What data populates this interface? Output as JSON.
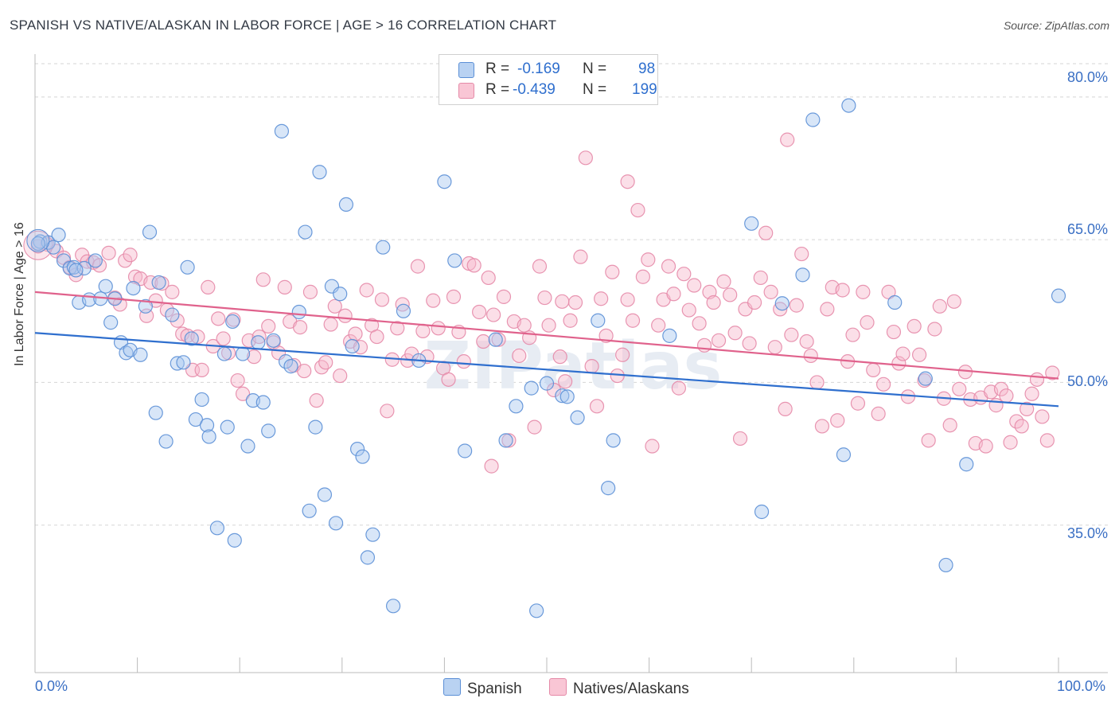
{
  "title": "SPANISH VS NATIVE/ALASKAN IN LABOR FORCE | AGE > 16 CORRELATION CHART",
  "source": "Source: ZipAtlas.com",
  "watermark": "ZIPatlas",
  "legend_stats": {
    "spanish": {
      "r_label": "R =",
      "r_value": "-0.169",
      "n_label": "N =",
      "n_value": "98"
    },
    "natives": {
      "r_label": "R =",
      "r_value": "-0.439",
      "n_label": "N =",
      "n_value": "199"
    }
  },
  "colors": {
    "spanish_fill": "#a9c8ef",
    "spanish_stroke": "#5b8fd6",
    "spanish_line": "#2f6fce",
    "natives_fill": "#f6b9cc",
    "natives_stroke": "#e58aa8",
    "natives_line": "#e0628c",
    "tick_text": "#3a6fc4",
    "grid": "#d5d5d5"
  },
  "chart_data": {
    "type": "scatter",
    "title": "SPANISH VS NATIVE/ALASKAN IN LABOR FORCE | AGE > 16 CORRELATION CHART",
    "xlabel": "",
    "ylabel": "In Labor Force | Age > 16",
    "xlim": [
      0,
      100
    ],
    "ylim": [
      19.5,
      83.5
    ],
    "x_tick_labels": [
      "0.0%",
      "100.0%"
    ],
    "y_ticks": [
      35,
      50,
      65,
      80
    ],
    "y_tick_labels": [
      "35.0%",
      "50.0%",
      "65.0%",
      "80.0%"
    ],
    "grid": "horizontal dashed",
    "legend": "bottom-center",
    "series": [
      {
        "name": "Spanish",
        "trend": {
          "x": [
            0,
            100
          ],
          "y": [
            55.2,
            47.5
          ]
        },
        "points": [
          [
            0.5,
            64.8
          ],
          [
            1.3,
            64.7
          ],
          [
            2.3,
            65.5
          ],
          [
            2.8,
            62.8
          ],
          [
            3.4,
            62.0
          ],
          [
            3.8,
            62.1
          ],
          [
            4.3,
            58.4
          ],
          [
            4.8,
            62.0
          ],
          [
            5.3,
            58.7
          ],
          [
            5.9,
            62.8
          ],
          [
            6.4,
            58.8
          ],
          [
            6.9,
            60.1
          ],
          [
            7.4,
            56.3
          ],
          [
            7.8,
            58.8
          ],
          [
            8.4,
            54.2
          ],
          [
            8.9,
            53.1
          ],
          [
            9.3,
            53.4
          ],
          [
            9.6,
            59.9
          ],
          [
            10.3,
            52.9
          ],
          [
            10.8,
            58.0
          ],
          [
            11.2,
            65.8
          ],
          [
            11.8,
            46.8
          ],
          [
            12.1,
            60.5
          ],
          [
            12.8,
            43.8
          ],
          [
            13.4,
            57.1
          ],
          [
            13.9,
            52.0
          ],
          [
            14.5,
            52.1
          ],
          [
            14.9,
            62.1
          ],
          [
            15.3,
            54.6
          ],
          [
            15.7,
            46.1
          ],
          [
            16.3,
            48.2
          ],
          [
            16.8,
            45.5
          ],
          [
            17.0,
            44.3
          ],
          [
            17.8,
            34.7
          ],
          [
            18.5,
            53.0
          ],
          [
            18.8,
            45.3
          ],
          [
            19.3,
            56.4
          ],
          [
            19.5,
            33.4
          ],
          [
            20.3,
            53.0
          ],
          [
            20.8,
            43.3
          ],
          [
            21.3,
            48.1
          ],
          [
            21.8,
            54.2
          ],
          [
            22.3,
            47.9
          ],
          [
            22.8,
            44.9
          ],
          [
            23.3,
            54.4
          ],
          [
            24.1,
            76.4
          ],
          [
            24.5,
            52.2
          ],
          [
            25.0,
            51.7
          ],
          [
            25.8,
            57.4
          ],
          [
            26.4,
            65.8
          ],
          [
            26.8,
            36.5
          ],
          [
            27.4,
            45.3
          ],
          [
            27.8,
            72.1
          ],
          [
            28.3,
            38.2
          ],
          [
            29.0,
            60.1
          ],
          [
            29.4,
            35.2
          ],
          [
            29.8,
            59.3
          ],
          [
            30.4,
            68.7
          ],
          [
            31.0,
            53.8
          ],
          [
            31.5,
            43.0
          ],
          [
            32.0,
            42.2
          ],
          [
            32.5,
            31.6
          ],
          [
            33.0,
            34.0
          ],
          [
            34.0,
            64.2
          ],
          [
            35.0,
            26.5
          ],
          [
            36.0,
            57.5
          ],
          [
            37.5,
            52.3
          ],
          [
            40.0,
            71.1
          ],
          [
            41.0,
            62.8
          ],
          [
            42.0,
            42.8
          ],
          [
            45.0,
            54.5
          ],
          [
            46.0,
            43.9
          ],
          [
            47.0,
            47.5
          ],
          [
            48.5,
            49.4
          ],
          [
            49.0,
            26.0
          ],
          [
            50.0,
            49.9
          ],
          [
            51.5,
            48.6
          ],
          [
            52.0,
            48.5
          ],
          [
            53.0,
            46.3
          ],
          [
            55.0,
            56.5
          ],
          [
            56.0,
            38.9
          ],
          [
            56.5,
            43.9
          ],
          [
            62.0,
            54.9
          ],
          [
            70.0,
            66.7
          ],
          [
            71.0,
            36.4
          ],
          [
            73.0,
            58.3
          ],
          [
            75.0,
            61.3
          ],
          [
            76.0,
            77.6
          ],
          [
            79.0,
            42.4
          ],
          [
            79.5,
            79.1
          ],
          [
            84.0,
            58.4
          ],
          [
            87.0,
            50.4
          ],
          [
            89.0,
            30.8
          ],
          [
            91.0,
            41.4
          ],
          [
            100.0,
            59.1
          ],
          [
            0.3,
            64.6
          ],
          [
            1.8,
            64.2
          ],
          [
            4.0,
            61.8
          ]
        ]
      },
      {
        "name": "Natives/Alaskans",
        "trend": {
          "x": [
            0,
            100
          ],
          "y": [
            59.5,
            50.4
          ]
        },
        "points": [
          [
            0.3,
            64.3
          ],
          [
            1.2,
            64.5
          ],
          [
            2.1,
            63.8
          ],
          [
            2.8,
            63.1
          ],
          [
            3.4,
            62.1
          ],
          [
            4.0,
            61.3
          ],
          [
            4.6,
            63.4
          ],
          [
            5.1,
            62.7
          ],
          [
            5.7,
            62.6
          ],
          [
            6.3,
            62.3
          ],
          [
            7.2,
            63.6
          ],
          [
            7.8,
            58.9
          ],
          [
            8.3,
            58.2
          ],
          [
            8.8,
            62.8
          ],
          [
            9.3,
            63.4
          ],
          [
            9.8,
            61.1
          ],
          [
            10.3,
            60.9
          ],
          [
            10.9,
            57.0
          ],
          [
            11.3,
            60.5
          ],
          [
            11.8,
            58.6
          ],
          [
            12.4,
            60.4
          ],
          [
            12.9,
            57.6
          ],
          [
            13.4,
            59.5
          ],
          [
            13.9,
            56.5
          ],
          [
            14.4,
            55.1
          ],
          [
            14.9,
            54.9
          ],
          [
            15.4,
            51.3
          ],
          [
            15.9,
            54.8
          ],
          [
            16.3,
            51.3
          ],
          [
            16.9,
            60.0
          ],
          [
            17.4,
            53.8
          ],
          [
            17.9,
            56.7
          ],
          [
            18.4,
            54.6
          ],
          [
            18.9,
            53.1
          ],
          [
            19.4,
            56.6
          ],
          [
            19.8,
            50.2
          ],
          [
            20.3,
            48.8
          ],
          [
            20.9,
            54.4
          ],
          [
            21.4,
            52.7
          ],
          [
            21.9,
            54.8
          ],
          [
            22.3,
            60.8
          ],
          [
            22.8,
            55.9
          ],
          [
            23.3,
            54.2
          ],
          [
            23.8,
            53.1
          ],
          [
            24.4,
            60.0
          ],
          [
            24.9,
            56.4
          ],
          [
            25.3,
            51.8
          ],
          [
            25.9,
            55.8
          ],
          [
            26.3,
            51.2
          ],
          [
            26.9,
            59.5
          ],
          [
            27.5,
            48.1
          ],
          [
            28.0,
            51.6
          ],
          [
            28.4,
            52.1
          ],
          [
            28.9,
            56.1
          ],
          [
            29.3,
            58.0
          ],
          [
            29.8,
            50.7
          ],
          [
            30.3,
            57.0
          ],
          [
            30.8,
            54.3
          ],
          [
            31.3,
            55.1
          ],
          [
            31.8,
            53.7
          ],
          [
            32.4,
            59.7
          ],
          [
            32.9,
            56.0
          ],
          [
            33.4,
            54.8
          ],
          [
            33.9,
            58.7
          ],
          [
            34.4,
            47.0
          ],
          [
            34.9,
            52.4
          ],
          [
            35.4,
            55.7
          ],
          [
            35.9,
            58.2
          ],
          [
            36.4,
            52.3
          ],
          [
            36.8,
            53.0
          ],
          [
            37.4,
            62.2
          ],
          [
            37.9,
            55.4
          ],
          [
            38.3,
            52.7
          ],
          [
            38.9,
            58.6
          ],
          [
            39.4,
            55.7
          ],
          [
            39.9,
            51.5
          ],
          [
            40.4,
            50.3
          ],
          [
            40.9,
            59.0
          ],
          [
            41.4,
            55.3
          ],
          [
            41.9,
            52.2
          ],
          [
            42.4,
            62.5
          ],
          [
            42.9,
            62.3
          ],
          [
            43.4,
            57.4
          ],
          [
            43.8,
            54.3
          ],
          [
            44.3,
            61.0
          ],
          [
            44.8,
            57.1
          ],
          [
            45.3,
            54.5
          ],
          [
            45.8,
            59.0
          ],
          [
            46.3,
            43.9
          ],
          [
            46.8,
            56.4
          ],
          [
            47.3,
            52.8
          ],
          [
            47.8,
            56.0
          ],
          [
            48.3,
            54.7
          ],
          [
            48.8,
            45.3
          ],
          [
            49.3,
            62.2
          ],
          [
            49.8,
            58.9
          ],
          [
            50.2,
            56.0
          ],
          [
            50.7,
            49.2
          ],
          [
            51.3,
            52.7
          ],
          [
            51.8,
            50.1
          ],
          [
            52.3,
            56.5
          ],
          [
            52.8,
            58.4
          ],
          [
            53.3,
            63.2
          ],
          [
            53.8,
            73.6
          ],
          [
            54.4,
            51.7
          ],
          [
            54.9,
            47.5
          ],
          [
            55.3,
            58.8
          ],
          [
            55.8,
            54.9
          ],
          [
            56.4,
            61.6
          ],
          [
            56.9,
            50.7
          ],
          [
            57.4,
            52.9
          ],
          [
            57.9,
            58.7
          ],
          [
            58.4,
            56.5
          ],
          [
            58.9,
            68.1
          ],
          [
            59.4,
            61.1
          ],
          [
            59.9,
            62.9
          ],
          [
            60.3,
            43.3
          ],
          [
            60.9,
            56.0
          ],
          [
            61.4,
            58.7
          ],
          [
            61.9,
            62.2
          ],
          [
            62.4,
            59.3
          ],
          [
            62.9,
            49.4
          ],
          [
            63.4,
            61.4
          ],
          [
            63.9,
            57.6
          ],
          [
            64.4,
            60.2
          ],
          [
            64.9,
            56.2
          ],
          [
            65.4,
            53.9
          ],
          [
            65.9,
            59.5
          ],
          [
            66.3,
            58.4
          ],
          [
            66.8,
            54.4
          ],
          [
            67.3,
            60.6
          ],
          [
            67.9,
            59.2
          ],
          [
            68.4,
            55.2
          ],
          [
            68.9,
            44.1
          ],
          [
            69.4,
            57.7
          ],
          [
            69.8,
            54.1
          ],
          [
            70.3,
            58.4
          ],
          [
            70.9,
            61.0
          ],
          [
            71.4,
            65.7
          ],
          [
            71.9,
            59.5
          ],
          [
            72.3,
            53.7
          ],
          [
            72.8,
            57.7
          ],
          [
            73.3,
            47.2
          ],
          [
            73.9,
            55.0
          ],
          [
            74.4,
            58.1
          ],
          [
            74.9,
            63.5
          ],
          [
            75.4,
            54.3
          ],
          [
            75.8,
            52.8
          ],
          [
            76.4,
            50.0
          ],
          [
            76.9,
            45.4
          ],
          [
            77.4,
            57.7
          ],
          [
            77.9,
            60.0
          ],
          [
            78.4,
            46.0
          ],
          [
            78.9,
            59.7
          ],
          [
            79.4,
            52.2
          ],
          [
            79.9,
            55.0
          ],
          [
            80.4,
            47.8
          ],
          [
            80.9,
            59.5
          ],
          [
            81.3,
            56.3
          ],
          [
            81.9,
            51.3
          ],
          [
            82.4,
            46.7
          ],
          [
            82.9,
            49.8
          ],
          [
            83.4,
            59.5
          ],
          [
            83.9,
            55.3
          ],
          [
            84.4,
            52.0
          ],
          [
            84.8,
            53.0
          ],
          [
            85.3,
            48.5
          ],
          [
            85.9,
            55.9
          ],
          [
            86.4,
            52.9
          ],
          [
            86.9,
            50.2
          ],
          [
            87.3,
            43.9
          ],
          [
            87.9,
            55.6
          ],
          [
            88.4,
            58.0
          ],
          [
            88.8,
            48.3
          ],
          [
            89.4,
            45.5
          ],
          [
            89.8,
            58.5
          ],
          [
            90.3,
            49.3
          ],
          [
            90.9,
            51.1
          ],
          [
            91.4,
            48.2
          ],
          [
            91.9,
            43.6
          ],
          [
            92.4,
            48.4
          ],
          [
            92.9,
            43.3
          ],
          [
            93.4,
            49.0
          ],
          [
            93.9,
            47.6
          ],
          [
            94.4,
            49.3
          ],
          [
            94.9,
            48.6
          ],
          [
            95.3,
            43.7
          ],
          [
            95.9,
            45.9
          ],
          [
            96.4,
            45.4
          ],
          [
            96.9,
            47.2
          ],
          [
            97.4,
            48.8
          ],
          [
            97.9,
            50.3
          ],
          [
            98.4,
            46.4
          ],
          [
            98.9,
            43.9
          ],
          [
            99.4,
            51.0
          ],
          [
            73.5,
            75.5
          ],
          [
            57.9,
            71.1
          ],
          [
            51.5,
            58.5
          ],
          [
            44.6,
            41.2
          ]
        ]
      }
    ]
  }
}
